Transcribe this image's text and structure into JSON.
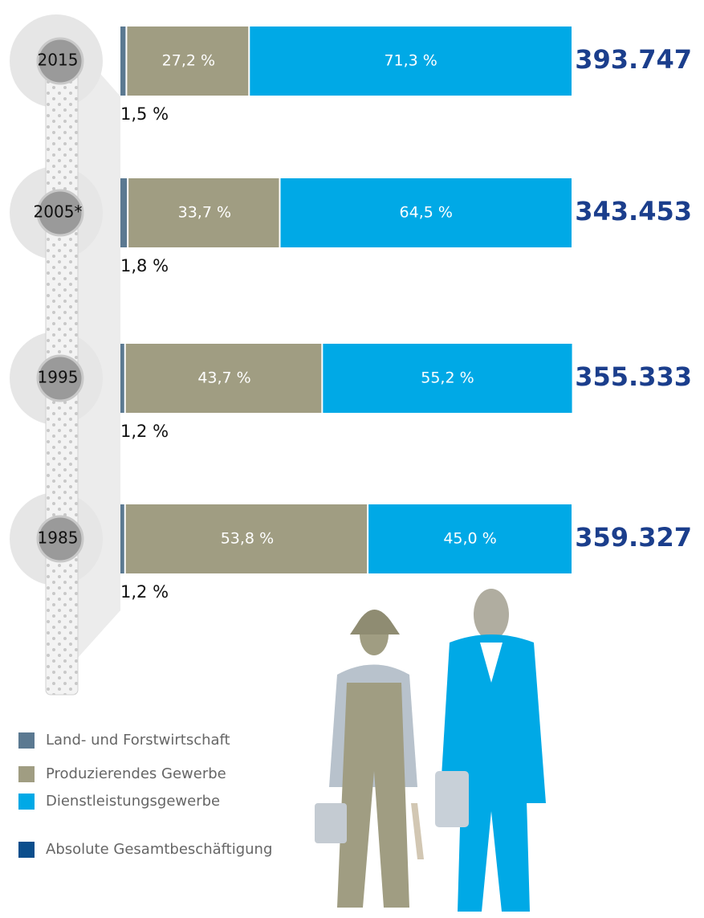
{
  "chart_data": {
    "type": "bar",
    "orientation": "horizontal",
    "stacked": true,
    "categories": [
      "2015",
      "2005*",
      "1995",
      "1985"
    ],
    "xlim": [
      0,
      100
    ],
    "series": [
      {
        "name": "Land- und Forstwirtschaft",
        "color": "#5b7991",
        "values": [
          1.5,
          1.8,
          1.2,
          1.2
        ],
        "value_labels": [
          "1,5 %",
          "1,8 %",
          "1,2 %",
          "1,2 %"
        ]
      },
      {
        "name": "Produzierendes Gewerbe",
        "color": "#a09d82",
        "values": [
          27.2,
          33.7,
          43.7,
          53.8
        ],
        "value_labels": [
          "27,2 %",
          "33,7 %",
          "43,7 %",
          "53,8 %"
        ]
      },
      {
        "name": "Dienstleistungsgewerbe",
        "color": "#00a9e6",
        "values": [
          71.3,
          64.5,
          55.2,
          45.0
        ],
        "value_labels": [
          "71,3 %",
          "64,5 %",
          "55,2 %",
          "45,0 %"
        ]
      }
    ],
    "totals": {
      "name": "Absolute Gesamtbeschäftigung",
      "color": "#0b4e8c",
      "values": [
        393747,
        343453,
        355333,
        359327
      ],
      "value_labels": [
        "393.747",
        "343.453",
        "355.333",
        "359.327"
      ]
    }
  }
}
